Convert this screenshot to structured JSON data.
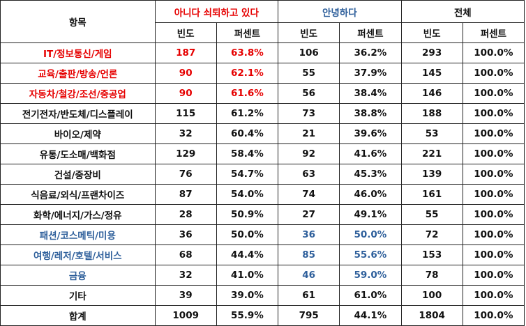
{
  "colors": {
    "red": "#e60000",
    "blue": "#2e5f9b",
    "text": "#111111",
    "border": "#222222"
  },
  "headers": {
    "category": "항목",
    "group1": "아니다 쇠퇴하고 있다",
    "group2": "안녕하다",
    "group3": "전체",
    "freq": "빈도",
    "pct": "퍼센트"
  },
  "rows": [
    {
      "label": "IT/정보통신/게임",
      "label_color": "red",
      "g1": [
        "187",
        "63.8%"
      ],
      "g1_color": "red",
      "g2": [
        "106",
        "36.2%"
      ],
      "g2_color": "",
      "g3": [
        "293",
        "100.0%"
      ]
    },
    {
      "label": "교육/출판/방송/언론",
      "label_color": "red",
      "g1": [
        "90",
        "62.1%"
      ],
      "g1_color": "red",
      "g2": [
        "55",
        "37.9%"
      ],
      "g2_color": "",
      "g3": [
        "145",
        "100.0%"
      ]
    },
    {
      "label": "자동차/철강/조선/중공업",
      "label_color": "red",
      "g1": [
        "90",
        "61.6%"
      ],
      "g1_color": "red",
      "g2": [
        "56",
        "38.4%"
      ],
      "g2_color": "",
      "g3": [
        "146",
        "100.0%"
      ]
    },
    {
      "label": "전기전자/반도체/디스플레이",
      "label_color": "",
      "g1": [
        "115",
        "61.2%"
      ],
      "g1_color": "",
      "g2": [
        "73",
        "38.8%"
      ],
      "g2_color": "",
      "g3": [
        "188",
        "100.0%"
      ]
    },
    {
      "label": "바이오/제약",
      "label_color": "",
      "g1": [
        "32",
        "60.4%"
      ],
      "g1_color": "",
      "g2": [
        "21",
        "39.6%"
      ],
      "g2_color": "",
      "g3": [
        "53",
        "100.0%"
      ]
    },
    {
      "label": "유통/도소매/백화점",
      "label_color": "",
      "g1": [
        "129",
        "58.4%"
      ],
      "g1_color": "",
      "g2": [
        "92",
        "41.6%"
      ],
      "g2_color": "",
      "g3": [
        "221",
        "100.0%"
      ]
    },
    {
      "label": "건설/중장비",
      "label_color": "",
      "g1": [
        "76",
        "54.7%"
      ],
      "g1_color": "",
      "g2": [
        "63",
        "45.3%"
      ],
      "g2_color": "",
      "g3": [
        "139",
        "100.0%"
      ]
    },
    {
      "label": "식음료/외식/프랜차이즈",
      "label_color": "",
      "g1": [
        "87",
        "54.0%"
      ],
      "g1_color": "",
      "g2": [
        "74",
        "46.0%"
      ],
      "g2_color": "",
      "g3": [
        "161",
        "100.0%"
      ]
    },
    {
      "label": "화학/에너지/가스/정유",
      "label_color": "",
      "g1": [
        "28",
        "50.9%"
      ],
      "g1_color": "",
      "g2": [
        "27",
        "49.1%"
      ],
      "g2_color": "",
      "g3": [
        "55",
        "100.0%"
      ]
    },
    {
      "label": "패션/코스메틱/미용",
      "label_color": "blue",
      "g1": [
        "36",
        "50.0%"
      ],
      "g1_color": "",
      "g2": [
        "36",
        "50.0%"
      ],
      "g2_color": "blue",
      "g3": [
        "72",
        "100.0%"
      ]
    },
    {
      "label": "여행/레저/호텔/서비스",
      "label_color": "blue",
      "g1": [
        "68",
        "44.4%"
      ],
      "g1_color": "",
      "g2": [
        "85",
        "55.6%"
      ],
      "g2_color": "blue",
      "g3": [
        "153",
        "100.0%"
      ]
    },
    {
      "label": "금융",
      "label_color": "blue",
      "g1": [
        "32",
        "41.0%"
      ],
      "g1_color": "",
      "g2": [
        "46",
        "59.0%"
      ],
      "g2_color": "blue",
      "g3": [
        "78",
        "100.0%"
      ]
    },
    {
      "label": "기타",
      "label_color": "",
      "g1": [
        "39",
        "39.0%"
      ],
      "g1_color": "",
      "g2": [
        "61",
        "61.0%"
      ],
      "g2_color": "",
      "g3": [
        "100",
        "100.0%"
      ]
    },
    {
      "label": "합계",
      "label_color": "",
      "g1": [
        "1009",
        "55.9%"
      ],
      "g1_color": "",
      "g2": [
        "795",
        "44.1%"
      ],
      "g2_color": "",
      "g3": [
        "1804",
        "100.0%"
      ]
    }
  ]
}
